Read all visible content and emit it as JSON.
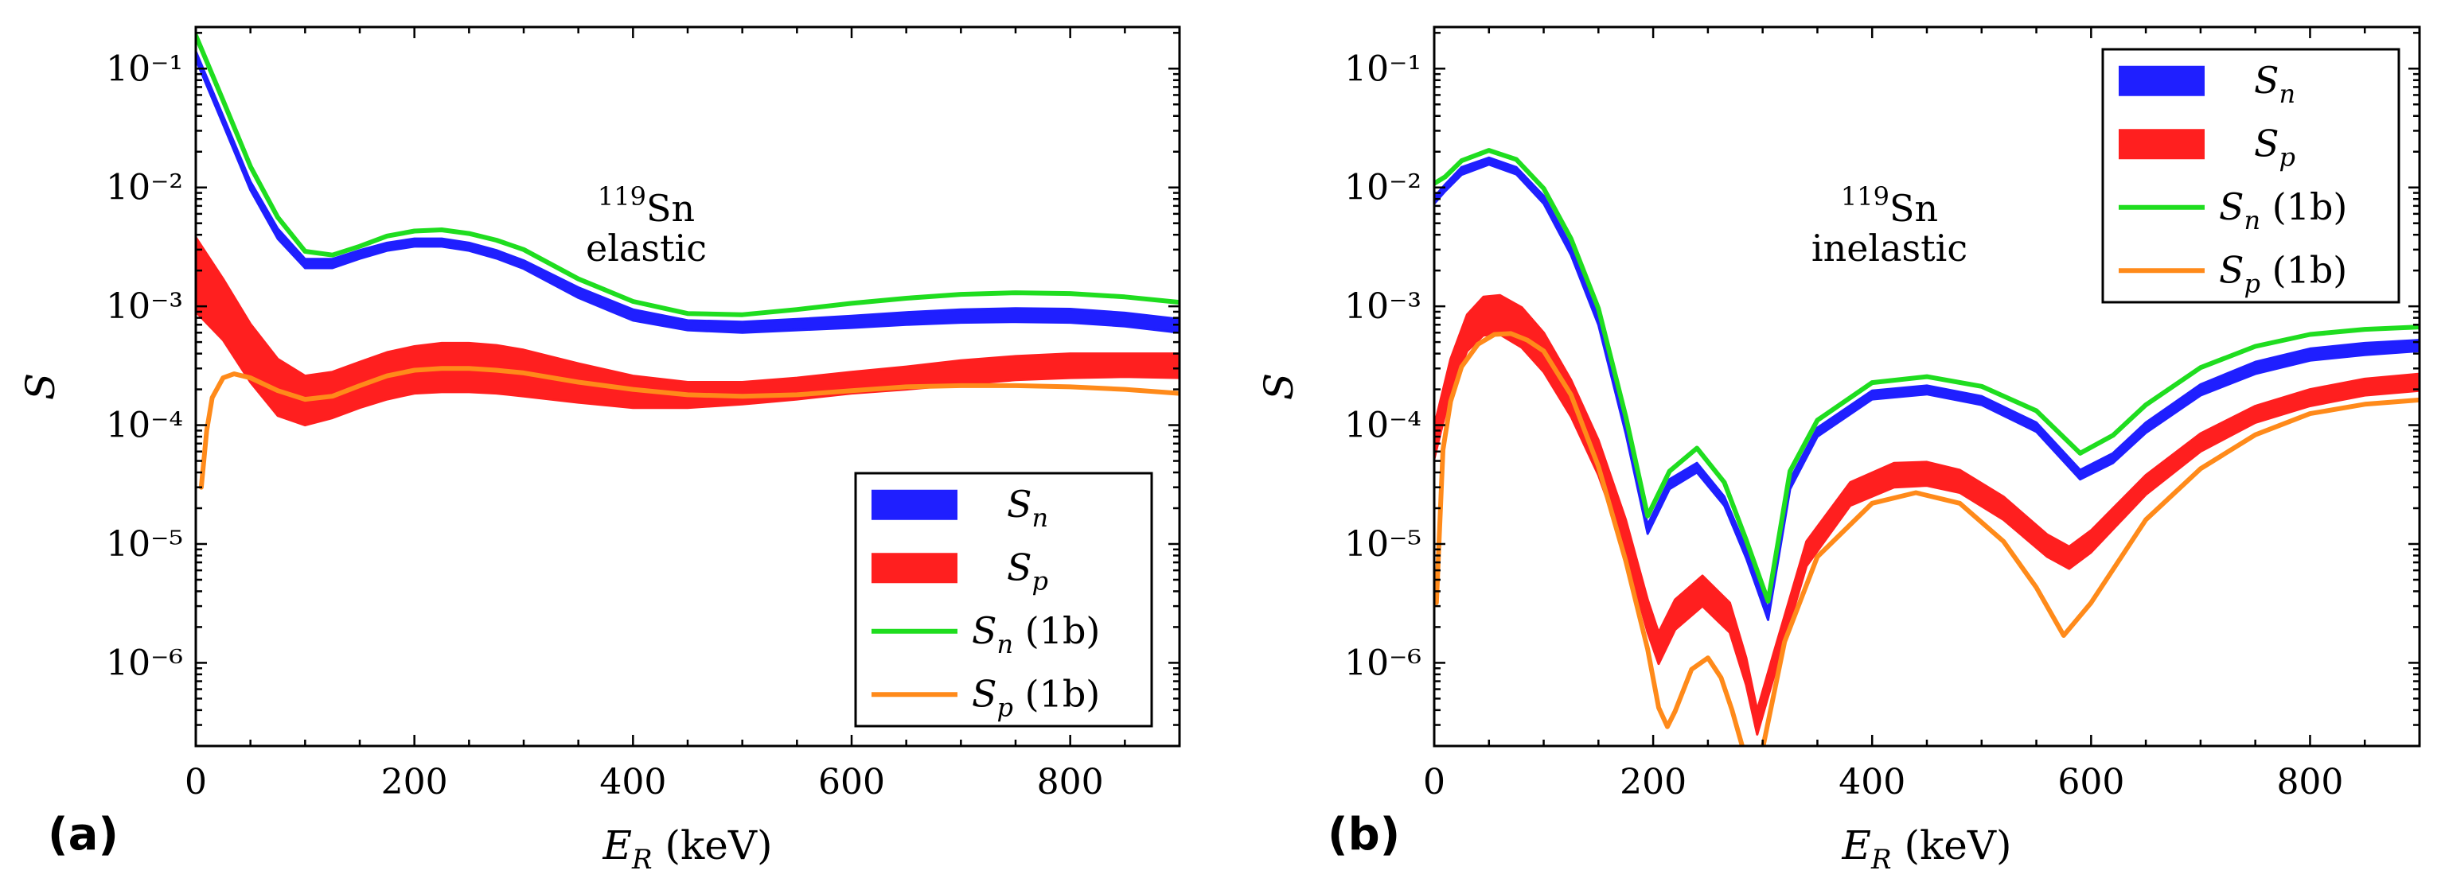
{
  "chart_data": [
    {
      "type": "line",
      "panel_tag": "(a)",
      "xlabel": "E_R (keV)",
      "xlabel_main": "E",
      "xlabel_sub": "R",
      "xlabel_unit": "(keV)",
      "ylabel": "S",
      "xlim": [
        0,
        900
      ],
      "ylim_log10": [
        -6.7,
        -0.65
      ],
      "xticks": [
        0,
        200,
        400,
        600,
        800
      ],
      "xtick_labels": [
        "0",
        "200",
        "400",
        "600",
        "800"
      ],
      "yticks": [
        -1,
        -2,
        -3,
        -4,
        -5,
        -6
      ],
      "ytick_labels": [
        "10⁻¹",
        "10⁻²",
        "10⁻³",
        "10⁻⁴",
        "10⁻⁵",
        "10⁻⁶"
      ],
      "annotation": {
        "isotope_mass": "119",
        "isotope": "Sn",
        "kind": "elastic"
      },
      "legend_position": "bottom-right",
      "x": [
        0,
        25,
        50,
        75,
        100,
        125,
        150,
        175,
        200,
        225,
        250,
        275,
        300,
        350,
        400,
        450,
        500,
        550,
        600,
        650,
        700,
        750,
        800,
        850,
        900
      ],
      "series": [
        {
          "name": "S_n",
          "label_main": "S",
          "label_sub": "n",
          "label_suffix": "",
          "style": "band",
          "color": "#1f1fff",
          "upper": [
            0.14,
            0.04,
            0.0112,
            0.0045,
            0.0025,
            0.0025,
            0.00296,
            0.00342,
            0.00371,
            0.00371,
            0.00342,
            0.00296,
            0.00243,
            0.00144,
            0.00094,
            0.00076,
            0.00074,
            0.00078,
            0.00083,
            0.00089,
            0.00094,
            0.00096,
            0.00095,
            0.00088,
            0.00078
          ],
          "lower": [
            0.12,
            0.034,
            0.0095,
            0.0037,
            0.0021,
            0.0021,
            0.00252,
            0.00294,
            0.00319,
            0.00319,
            0.00294,
            0.00253,
            0.00207,
            0.00118,
            0.00076,
            0.00063,
            0.0006,
            0.00063,
            0.00066,
            0.0007,
            0.00073,
            0.00074,
            0.00073,
            0.00068,
            0.0006
          ]
        },
        {
          "name": "S_p",
          "label_main": "S",
          "label_sub": "p",
          "label_suffix": "",
          "style": "band",
          "color": "#ff1f1f",
          "upper": [
            0.0038,
            0.0017,
            0.00071,
            0.00036,
            0.00026,
            0.00028,
            0.00034,
            0.00041,
            0.00046,
            0.00049,
            0.00049,
            0.00047,
            0.00043,
            0.00033,
            0.00026,
            0.00023,
            0.00023,
            0.00025,
            0.00028,
            0.00031,
            0.00035,
            0.00038,
            0.0004,
            0.0004,
            0.0004
          ],
          "lower": [
            0.0009,
            0.00052,
            0.00023,
            0.00012,
            0.0001,
            0.000115,
            0.00014,
            0.000165,
            0.000185,
            0.00019,
            0.00019,
            0.000185,
            0.000175,
            0.000155,
            0.00014,
            0.00014,
            0.00015,
            0.000165,
            0.000185,
            0.0002,
            0.00022,
            0.00024,
            0.00025,
            0.000255,
            0.00025
          ]
        },
        {
          "name": "S_n (1b)",
          "label_main": "S",
          "label_sub": "n",
          "label_suffix": " (1b)",
          "style": "line",
          "color": "#1fdd1f",
          "values": [
            0.19,
            0.054,
            0.015,
            0.0056,
            0.0029,
            0.0027,
            0.0032,
            0.0039,
            0.0043,
            0.0044,
            0.0041,
            0.0036,
            0.003,
            0.0017,
            0.0011,
            0.00087,
            0.00085,
            0.00094,
            0.00106,
            0.00117,
            0.00126,
            0.0013,
            0.00128,
            0.0012,
            0.00108
          ]
        },
        {
          "name": "S_p (1b)",
          "label_main": "S",
          "label_sub": "p",
          "label_suffix": " (1b)",
          "style": "line",
          "color": "#ff8a1a",
          "x": [
            5,
            10,
            15,
            25,
            35,
            50,
            75,
            100,
            125,
            150,
            175,
            200,
            225,
            250,
            275,
            300,
            350,
            400,
            450,
            500,
            550,
            600,
            650,
            700,
            750,
            800,
            850,
            900
          ],
          "values": [
            3e-05,
            9e-05,
            0.00017,
            0.00025,
            0.00027,
            0.00025,
            0.000195,
            0.000165,
            0.000175,
            0.000215,
            0.00026,
            0.00029,
            0.0003,
            0.0003,
            0.00029,
            0.000275,
            0.00023,
            0.0002,
            0.00018,
            0.000175,
            0.00018,
            0.000195,
            0.00021,
            0.000215,
            0.000215,
            0.00021,
            0.0002,
            0.000185
          ]
        }
      ]
    },
    {
      "type": "line",
      "panel_tag": "(b)",
      "xlabel": "E_R (keV)",
      "xlabel_main": "E",
      "xlabel_sub": "R",
      "xlabel_unit": "(keV)",
      "ylabel": "S",
      "xlim": [
        0,
        900
      ],
      "ylim_log10": [
        -6.7,
        -0.65
      ],
      "xticks": [
        0,
        200,
        400,
        600,
        800
      ],
      "xtick_labels": [
        "0",
        "200",
        "400",
        "600",
        "800"
      ],
      "yticks": [
        -1,
        -2,
        -3,
        -4,
        -5,
        -6
      ],
      "ytick_labels": [
        "10⁻¹",
        "10⁻²",
        "10⁻³",
        "10⁻⁴",
        "10⁻⁵",
        "10⁻⁶"
      ],
      "annotation": {
        "isotope_mass": "119",
        "isotope": "Sn",
        "kind": "inelastic"
      },
      "legend_position": "top-right",
      "series": [
        {
          "name": "S_n",
          "label_main": "S",
          "label_sub": "n",
          "label_suffix": "",
          "style": "band",
          "color": "#1f1fff",
          "x": [
            0,
            10,
            25,
            50,
            75,
            100,
            125,
            150,
            175,
            195,
            215,
            240,
            265,
            285,
            305,
            325,
            350,
            400,
            450,
            500,
            550,
            590,
            620,
            650,
            700,
            750,
            800,
            850,
            900
          ],
          "upper": [
            0.0083,
            0.0106,
            0.0148,
            0.0178,
            0.0148,
            0.0085,
            0.0032,
            0.00083,
            0.0001,
            1.45e-05,
            3.5e-05,
            4.8e-05,
            2.5e-05,
            9.2e-06,
            2.8e-06,
            3.5e-05,
            9.5e-05,
            0.000195,
            0.000215,
            0.000175,
            0.000105,
            4.2e-05,
            5.8e-05,
            0.000105,
            0.00022,
            0.00034,
            0.00044,
            0.00049,
            0.00052
          ],
          "lower": [
            0.0073,
            0.0093,
            0.0128,
            0.0156,
            0.0129,
            0.0073,
            0.0027,
            0.0007,
            8.5e-05,
            1.22e-05,
            2.9e-05,
            4e-05,
            2.1e-05,
            7.6e-06,
            2.3e-06,
            2.9e-05,
            8e-05,
            0.000165,
            0.000182,
            0.000148,
            8.8e-05,
            3.5e-05,
            4.8e-05,
            8.6e-05,
            0.000178,
            0.00027,
            0.00035,
            0.00039,
            0.00042
          ]
        },
        {
          "name": "S_p",
          "label_main": "S",
          "label_sub": "p",
          "label_suffix": "",
          "style": "band",
          "color": "#ff1f1f",
          "x": [
            0,
            15,
            30,
            45,
            60,
            80,
            100,
            125,
            150,
            175,
            195,
            205,
            220,
            245,
            270,
            285,
            295,
            310,
            340,
            380,
            420,
            450,
            480,
            520,
            560,
            580,
            600,
            650,
            700,
            750,
            800,
            850,
            900
          ],
          "upper": [
            9.8e-05,
            0.00036,
            0.00085,
            0.0012,
            0.00124,
            0.00098,
            0.0006,
            0.00024,
            7.5e-05,
            1.6e-05,
            3.4e-06,
            1.8e-06,
            3.4e-06,
            5.4e-06,
            3.2e-06,
            1.1e-06,
            4e-07,
            1.2e-06,
            1.05e-05,
            3.3e-05,
            4.8e-05,
            4.9e-05,
            4.2e-05,
            2.5e-05,
            1.2e-05,
            9.5e-06,
            1.3e-05,
            3.8e-05,
            8.5e-05,
            0.000145,
            0.0002,
            0.000245,
            0.00027
          ],
          "lower": [
            5.2e-05,
            0.00019,
            0.00042,
            0.00057,
            0.00058,
            0.00045,
            0.00028,
            0.000118,
            3.8e-05,
            8.5e-06,
            1.8e-06,
            9.8e-07,
            1.9e-06,
            3e-06,
            1.8e-06,
            6.5e-07,
            2.5e-07,
            7.5e-07,
            6.5e-06,
            2.1e-05,
            3e-05,
            3.1e-05,
            2.7e-05,
            1.6e-05,
            7.8e-06,
            6.2e-06,
            8.5e-06,
            2.6e-05,
            6e-05,
            0.000105,
            0.000145,
            0.000178,
            0.000195
          ]
        },
        {
          "name": "S_n (1b)",
          "label_main": "S",
          "label_sub": "n",
          "label_suffix": " (1b)",
          "style": "line",
          "color": "#1fdd1f",
          "x": [
            0,
            10,
            25,
            50,
            75,
            100,
            125,
            150,
            175,
            195,
            215,
            240,
            265,
            285,
            305,
            325,
            350,
            400,
            450,
            500,
            550,
            590,
            620,
            650,
            700,
            750,
            800,
            850,
            900
          ],
          "values": [
            0.0108,
            0.0123,
            0.0168,
            0.0205,
            0.0172,
            0.0098,
            0.0037,
            0.00096,
            0.000118,
            1.72e-05,
            4.1e-05,
            6.4e-05,
            3.3e-05,
            1.08e-05,
            3.3e-06,
            4.1e-05,
            0.00011,
            0.000228,
            0.000256,
            0.000212,
            0.000132,
            5.8e-05,
            8.2e-05,
            0.000148,
            0.000305,
            0.00046,
            0.00058,
            0.00064,
            0.00067
          ]
        },
        {
          "name": "S_p (1b)",
          "label_main": "S",
          "label_sub": "p",
          "label_suffix": " (1b)",
          "style": "line",
          "color": "#ff8a1a",
          "x": [
            2,
            8,
            15,
            25,
            40,
            55,
            70,
            85,
            100,
            125,
            150,
            175,
            195,
            205,
            213,
            220,
            235,
            250,
            262,
            272,
            282,
            300,
            320,
            350,
            400,
            440,
            480,
            520,
            550,
            575,
            600,
            650,
            700,
            750,
            800,
            850,
            900
          ],
          "values": [
            3.2e-06,
            6.2e-05,
            0.000158,
            0.00031,
            0.00048,
            0.00058,
            0.00059,
            0.00052,
            0.00042,
            0.00018,
            4.5e-05,
            7.2e-06,
            1.3e-06,
            4.2e-07,
            2.9e-07,
            3.9e-07,
            8.8e-07,
            1.1e-06,
            7.5e-07,
            4e-07,
            1.9e-07,
            1.9e-07,
            1.5e-06,
            7.8e-06,
            2.2e-05,
            2.7e-05,
            2.2e-05,
            1.05e-05,
            4.3e-06,
            1.7e-06,
            3.2e-06,
            1.6e-05,
            4.3e-05,
            8.3e-05,
            0.000125,
            0.00015,
            0.000163
          ]
        }
      ]
    }
  ]
}
